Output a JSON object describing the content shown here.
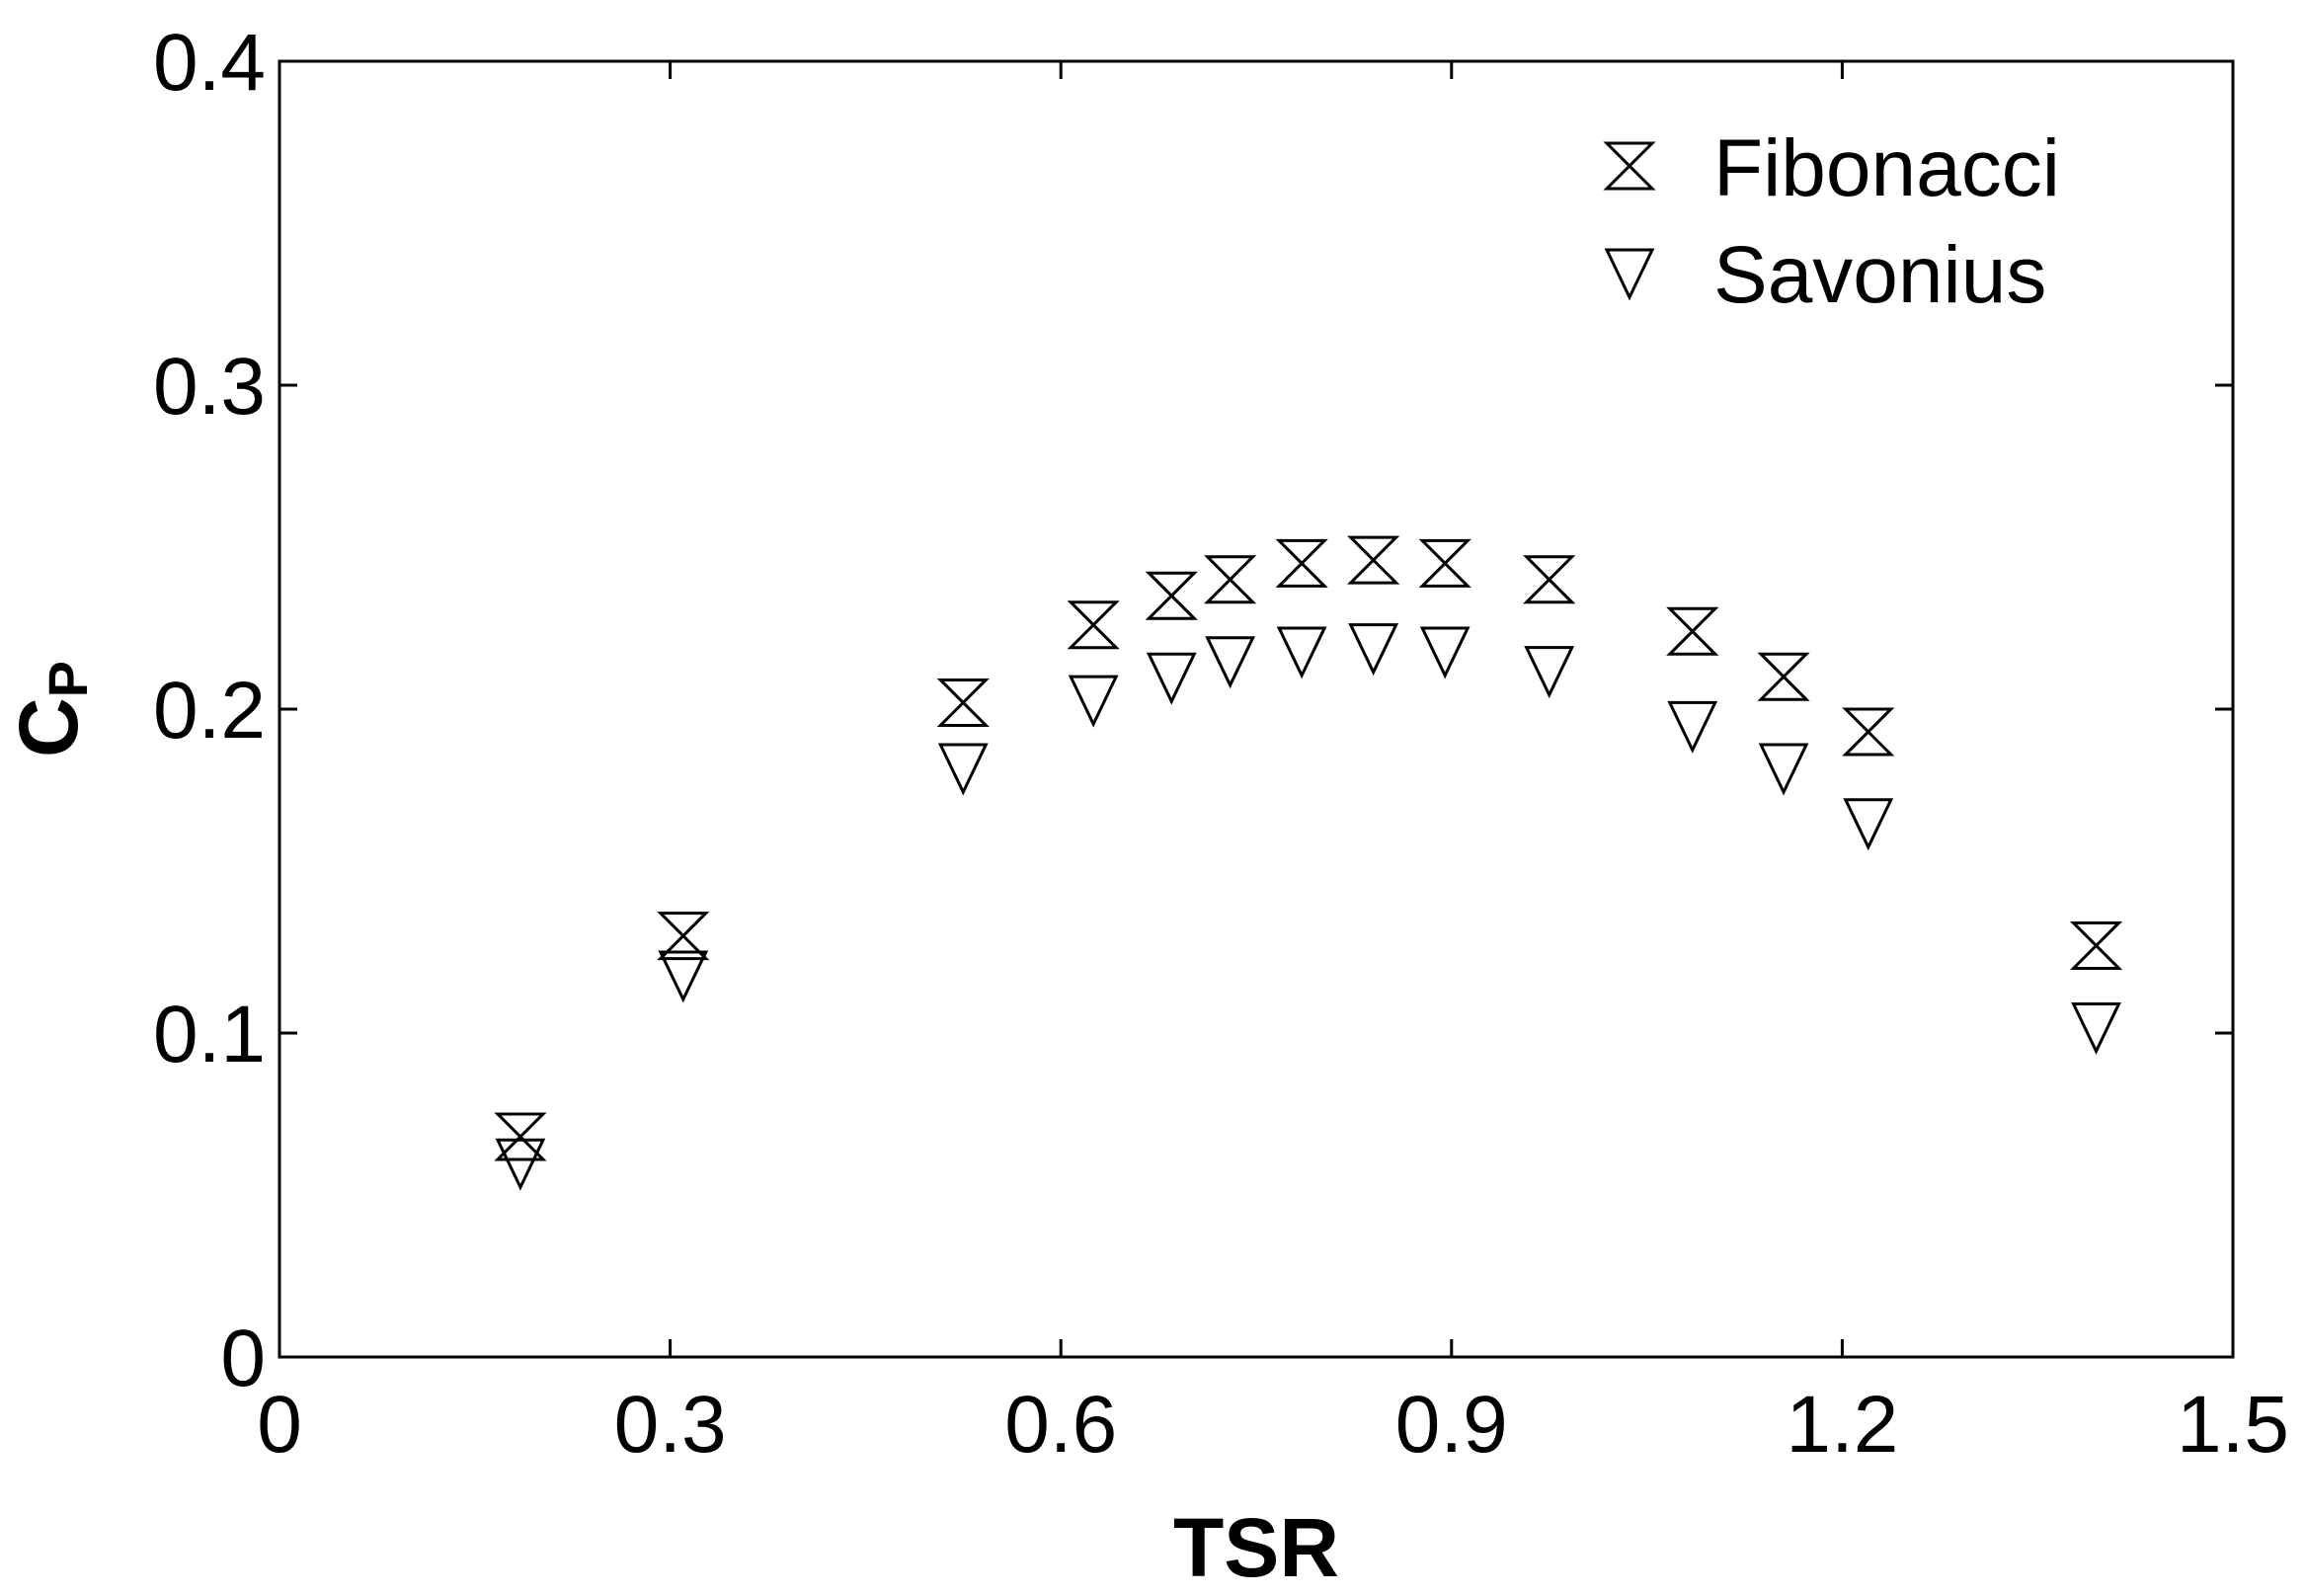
{
  "chart_data": {
    "type": "scatter",
    "xlabel": "TSR",
    "ylabel": {
      "main": "C",
      "sub": "P"
    },
    "xlim": [
      0,
      1.5
    ],
    "ylim": [
      0,
      0.4
    ],
    "xticks": [
      "0",
      "0.3",
      "0.6",
      "0.9",
      "1.2",
      "1.5"
    ],
    "yticks": [
      "0",
      "0.1",
      "0.2",
      "0.3",
      "0.4"
    ],
    "xtick_values": [
      0,
      0.3,
      0.6,
      0.9,
      1.2,
      1.5
    ],
    "ytick_values": [
      0,
      0.1,
      0.2,
      0.3,
      0.4
    ],
    "legend_position": "top-right",
    "grid": false,
    "series": [
      {
        "name": "Fibonacci",
        "marker": "hourglass-x",
        "x": [
          0.185,
          0.31,
          0.525,
          0.625,
          0.685,
          0.73,
          0.785,
          0.84,
          0.895,
          0.975,
          1.085,
          1.155,
          1.22,
          1.395
        ],
        "y": [
          0.068,
          0.13,
          0.202,
          0.226,
          0.235,
          0.24,
          0.245,
          0.246,
          0.245,
          0.24,
          0.224,
          0.21,
          0.193,
          0.127
        ]
      },
      {
        "name": "Savonius",
        "marker": "triangle-down",
        "x": [
          0.185,
          0.31,
          0.525,
          0.625,
          0.685,
          0.73,
          0.785,
          0.84,
          0.895,
          0.975,
          1.085,
          1.155,
          1.22,
          1.395
        ],
        "y": [
          0.06,
          0.118,
          0.182,
          0.203,
          0.21,
          0.215,
          0.218,
          0.219,
          0.218,
          0.212,
          0.195,
          0.182,
          0.165,
          0.102
        ]
      }
    ]
  }
}
